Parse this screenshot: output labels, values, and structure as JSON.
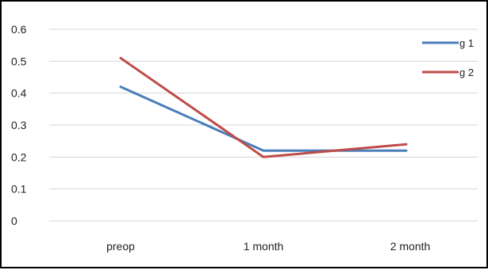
{
  "chart_data": {
    "type": "line",
    "categories": [
      "preop",
      "1 month",
      "2 month"
    ],
    "series": [
      {
        "name": "g 1",
        "values": [
          0.42,
          0.22,
          0.22
        ],
        "color": "#4a7ebb"
      },
      {
        "name": "g 2",
        "values": [
          0.51,
          0.2,
          0.24
        ],
        "color": "#be4b48"
      }
    ],
    "y_ticks": [
      "0",
      "0.1",
      "0.2",
      "0.3",
      "0.4",
      "0.5",
      "0.6"
    ],
    "ylim": [
      0,
      0.6
    ],
    "grid": true,
    "legend_position": "top-right",
    "title": "",
    "xlabel": "",
    "ylabel": ""
  }
}
